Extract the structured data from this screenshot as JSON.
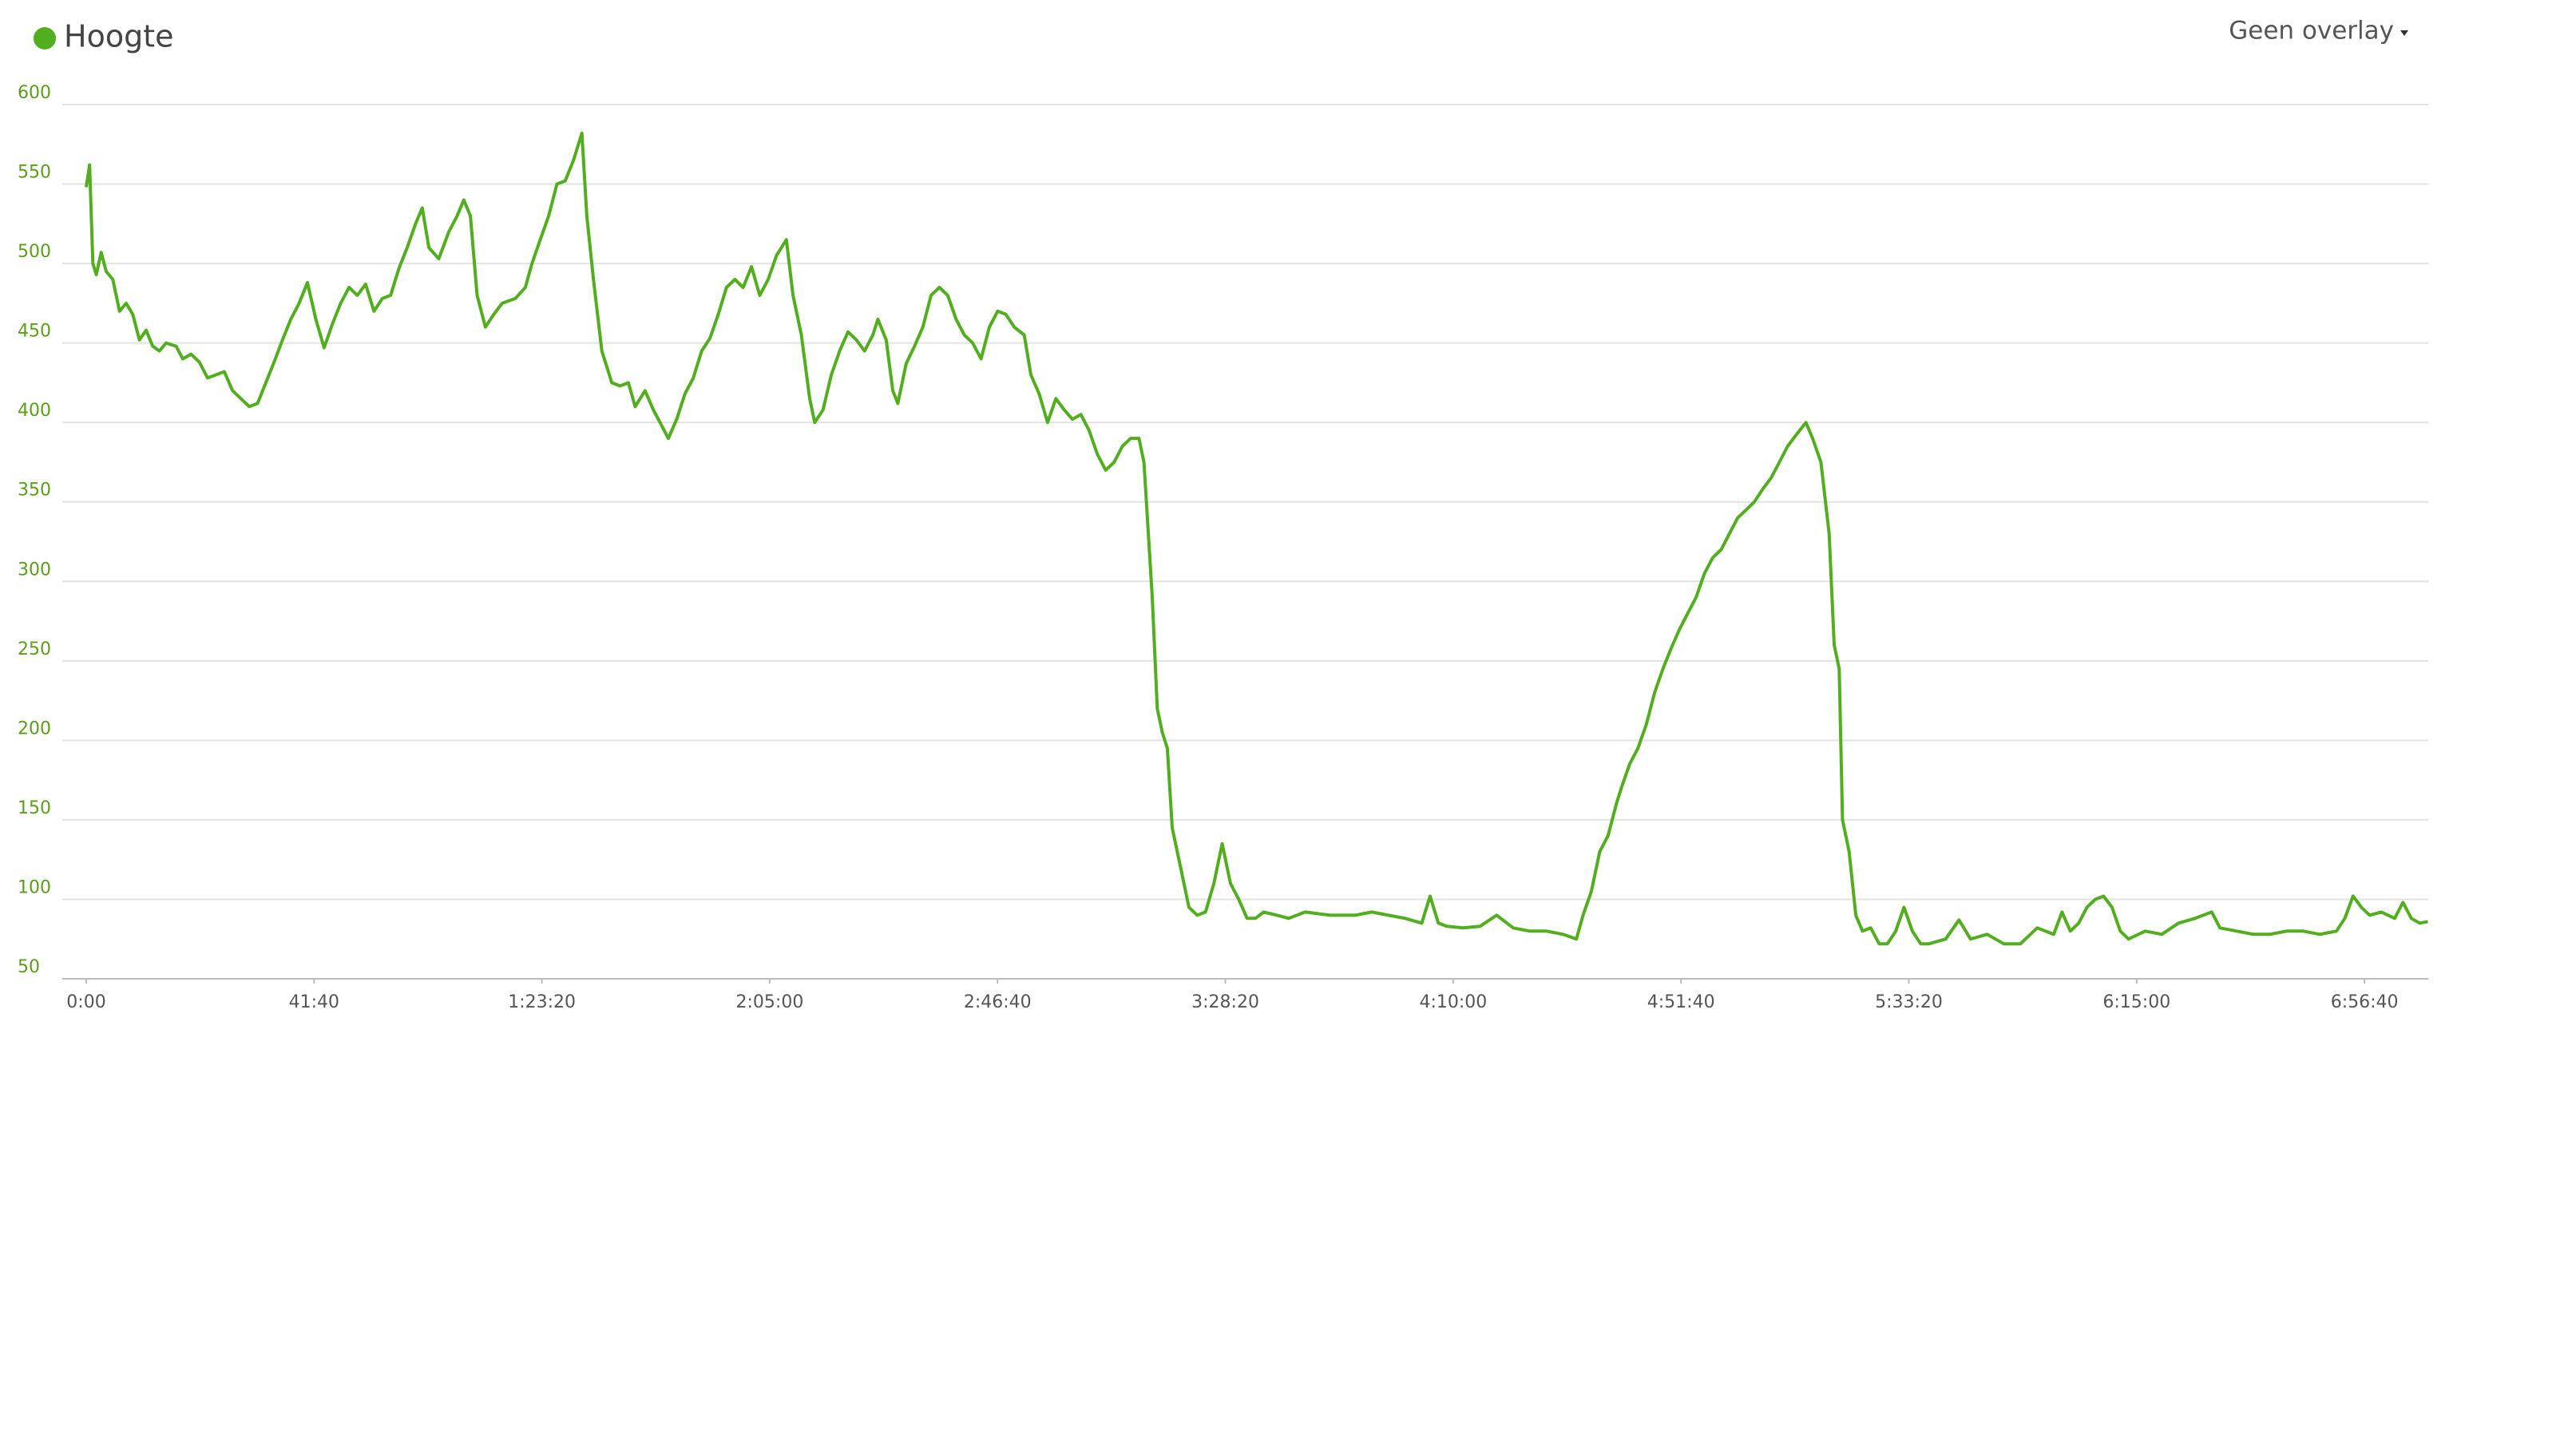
{
  "controls": {
    "overlay": "Geen overlay"
  },
  "chart_data": {
    "type": "line",
    "x": [
      0,
      37,
      73,
      110,
      164,
      219,
      292,
      365,
      438,
      511,
      584,
      657,
      730,
      803,
      876,
      986,
      1059,
      1150,
      1241,
      1332,
      1424,
      1515,
      1606,
      1697,
      1789,
      1880,
      1971,
      2062,
      2154,
      2245,
      2336,
      2427,
      2519,
      2610,
      2701,
      2792,
      2884,
      2975,
      3066,
      3157,
      3249,
      3340,
      3431,
      3522,
      3614,
      3687,
      3760,
      3869,
      3979,
      4070,
      4143,
      4216,
      4289,
      4380,
      4471,
      4563,
      4709,
      4818,
      4891,
      4982,
      5074,
      5165,
      5256,
      5347,
      5439,
      5493,
      5566,
      5658,
      5767,
      5858,
      5950,
      6023,
      6132,
      6223,
      6315,
      6388,
      6479,
      6570,
      6661,
      6753,
      6844,
      6935,
      7026,
      7118,
      7209,
      7300,
      7391,
      7483,
      7574,
      7683,
      7756,
      7848,
      7939,
      7994,
      8085,
      8176,
      8267,
      8359,
      8450,
      8541,
      8632,
      8687,
      8778,
      8851,
      8906,
      8997,
      9089,
      9180,
      9271,
      9362,
      9454,
      9545,
      9636,
      9727,
      9819,
      9910,
      10001,
      10092,
      10184,
      10293,
      10366,
      10457,
      10549,
      10640,
      10731,
      10822,
      10914,
      11005,
      11096,
      11187,
      11279,
      11370,
      11461,
      11552,
      11607,
      11644,
      11698,
      11753,
      11808,
      11863,
      11917,
      12009,
      12100,
      12191,
      12282,
      12374,
      12465,
      12556,
      12647,
      12739,
      12830,
      12921,
      13067,
      13195,
      13377,
      13651,
      13925,
      14107,
      14290,
      14472,
      14655,
      14746,
      14837,
      14929,
      15111,
      15294,
      15476,
      15659,
      15841,
      16024,
      16206,
      16352,
      16425,
      16516,
      16608,
      16699,
      16790,
      16845,
      16936,
      17027,
      17119,
      17210,
      17301,
      17392,
      17484,
      17575,
      17666,
      17757,
      17849,
      17940,
      18031,
      18122,
      18214,
      18305,
      18396,
      18487,
      18579,
      18670,
      18761,
      18871,
      18944,
      19035,
      19126,
      19181,
      19236,
      19272,
      19345,
      19418,
      19491,
      19582,
      19674,
      19765,
      19856,
      19947,
      20039,
      20130,
      20221,
      20404,
      20550,
      20677,
      20860,
      21042,
      21225,
      21407,
      21590,
      21681,
      21772,
      21864,
      21955,
      22046,
      22137,
      22229,
      22320,
      22411,
      22594,
      22776,
      22959,
      23141,
      23324,
      23415,
      23597,
      23780,
      23962,
      24145,
      24327,
      24510,
      24692,
      24784,
      24875,
      24966,
      25057,
      25185,
      25331,
      25422,
      25514,
      25605,
      25696
    ],
    "series": [
      {
        "name": "Hoogte",
        "color": "#52ae1f",
        "values": [
          548,
          562,
          500,
          493,
          507,
          495,
          490,
          470,
          475,
          468,
          452,
          458,
          448,
          445,
          450,
          448,
          440,
          443,
          438,
          428,
          430,
          432,
          420,
          415,
          410,
          412,
          425,
          438,
          452,
          465,
          475,
          488,
          465,
          447,
          462,
          475,
          485,
          480,
          487,
          470,
          478,
          480,
          497,
          510,
          525,
          535,
          510,
          503,
          520,
          530,
          540,
          530,
          480,
          460,
          468,
          475,
          478,
          485,
          500,
          515,
          530,
          550,
          552,
          565,
          582,
          530,
          490,
          445,
          425,
          423,
          425,
          410,
          420,
          408,
          398,
          390,
          402,
          418,
          428,
          445,
          453,
          468,
          485,
          490,
          485,
          498,
          480,
          490,
          505,
          515,
          480,
          455,
          415,
          400,
          408,
          430,
          445,
          457,
          452,
          445,
          455,
          465,
          452,
          420,
          412,
          437,
          448,
          460,
          480,
          485,
          480,
          465,
          455,
          450,
          440,
          460,
          470,
          468,
          460,
          455,
          430,
          418,
          400,
          415,
          408,
          402,
          405,
          395,
          380,
          370,
          375,
          385,
          390,
          390,
          375,
          340,
          290,
          220,
          205,
          195,
          145,
          120,
          95,
          90,
          92,
          110,
          135,
          110,
          100,
          88,
          88,
          92,
          90,
          88,
          92,
          90,
          90,
          92,
          90,
          88,
          85,
          102,
          85,
          83,
          82,
          83,
          90,
          82,
          80,
          80,
          78,
          75,
          90,
          105,
          130,
          140,
          160,
          170,
          185,
          195,
          210,
          230,
          245,
          258,
          270,
          280,
          290,
          305,
          315,
          320,
          330,
          340,
          345,
          350,
          358,
          365,
          375,
          385,
          392,
          400,
          390,
          375,
          330,
          260,
          245,
          150,
          130,
          90,
          80,
          82,
          72,
          72,
          80,
          95,
          80,
          72,
          72,
          75,
          87,
          75,
          78,
          72,
          72,
          82,
          78,
          92,
          80,
          85,
          95,
          100,
          102,
          95,
          80,
          75,
          80,
          78,
          85,
          88,
          92,
          82,
          80,
          78,
          78,
          80,
          80,
          78,
          80,
          88,
          102,
          95,
          90,
          92,
          88,
          98,
          88,
          85,
          86
        ]
      }
    ],
    "xlim": [
      0,
      25700
    ],
    "ylim": [
      50,
      600
    ],
    "xticks": [
      {
        "value": 0,
        "label": "0:00"
      },
      {
        "value": 2500,
        "label": "41:40"
      },
      {
        "value": 5000,
        "label": "1:23:20"
      },
      {
        "value": 7500,
        "label": "2:05:00"
      },
      {
        "value": 10000,
        "label": "2:46:40"
      },
      {
        "value": 12500,
        "label": "3:28:20"
      },
      {
        "value": 15000,
        "label": "4:10:00"
      },
      {
        "value": 17500,
        "label": "4:51:40"
      },
      {
        "value": 20000,
        "label": "5:33:20"
      },
      {
        "value": 22500,
        "label": "6:15:00"
      },
      {
        "value": 25000,
        "label": "6:56:40"
      }
    ],
    "yticks": [
      50,
      100,
      150,
      200,
      250,
      300,
      350,
      400,
      450,
      500,
      550,
      600
    ],
    "grid": true
  }
}
